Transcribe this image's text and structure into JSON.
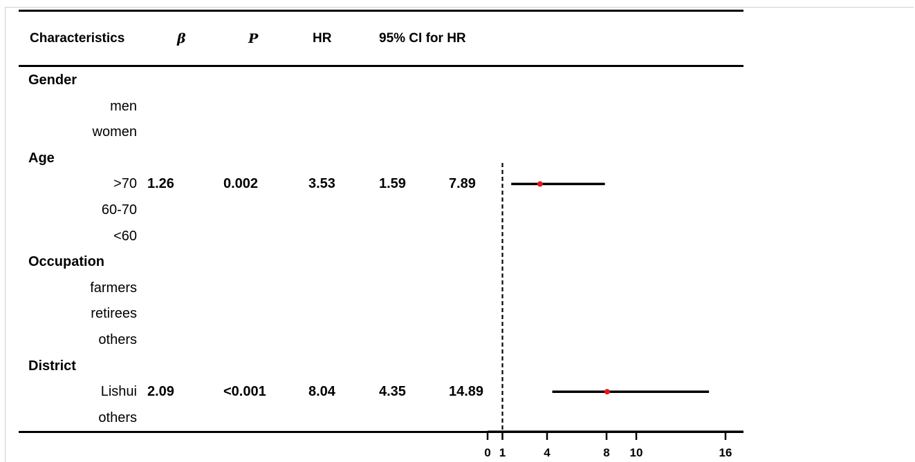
{
  "headers": {
    "characteristics": "Characteristics",
    "beta": "β",
    "p": "P",
    "hr": "HR",
    "ci": "95% CI for HR"
  },
  "rows": [
    {
      "kind": "category",
      "label": "Gender"
    },
    {
      "kind": "level",
      "label": "men"
    },
    {
      "kind": "level",
      "label": "women"
    },
    {
      "kind": "category",
      "label": "Age"
    },
    {
      "kind": "level",
      "label": ">70",
      "beta": "1.26",
      "p": "0.002",
      "hr": "3.53",
      "ci_low": "1.59",
      "ci_high": "7.89"
    },
    {
      "kind": "level",
      "label": "60-70"
    },
    {
      "kind": "level",
      "label": "<60"
    },
    {
      "kind": "category",
      "label": "Occupation"
    },
    {
      "kind": "level",
      "label": "farmers"
    },
    {
      "kind": "level",
      "label": "retirees"
    },
    {
      "kind": "level",
      "label": "others"
    },
    {
      "kind": "category",
      "label": "District"
    },
    {
      "kind": "level",
      "label": "Lishui",
      "beta": "2.09",
      "p": "<0.001",
      "hr": "8.04",
      "ci_low": "4.35",
      "ci_high": "14.89"
    },
    {
      "kind": "level",
      "label": "others"
    }
  ],
  "chart_data": {
    "type": "forest",
    "x_ticks": [
      0,
      1,
      4,
      8,
      10,
      16
    ],
    "reference_line": 1,
    "xlim": [
      0,
      16
    ],
    "point_color": "#e8161b",
    "points": [
      {
        "row": ">70",
        "hr": 3.53,
        "ci_low": 1.59,
        "ci_high": 7.89
      },
      {
        "row": "Lishui",
        "hr": 8.04,
        "ci_low": 4.35,
        "ci_high": 14.89
      }
    ]
  }
}
